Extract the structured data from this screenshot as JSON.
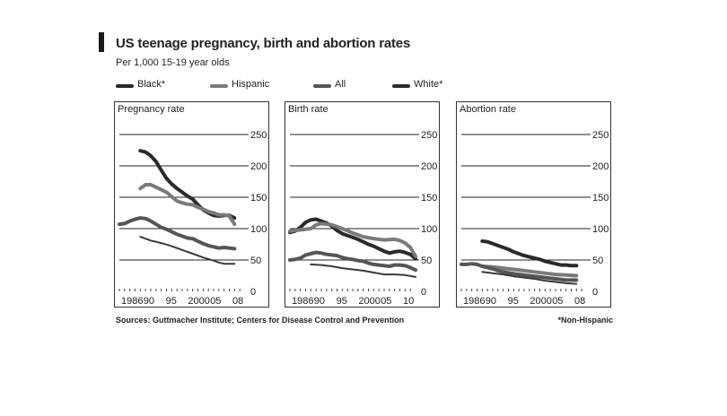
{
  "header": {
    "title": "US teenage pregnancy, birth and abortion rates",
    "subtitle": "Per 1,000 15-19 year olds"
  },
  "legend": [
    {
      "label": "Black*",
      "color": "#2a2a2a"
    },
    {
      "label": "Hispanic",
      "color": "#7a7a7a"
    },
    {
      "label": "All",
      "color": "#555555"
    },
    {
      "label": "White*",
      "color": "#2a2a2a"
    }
  ],
  "footer": {
    "source": "Sources: Guttmacher Institute; Centers for Disease Control and Prevention",
    "note": "*Non-Hispanic"
  },
  "chart_data": [
    {
      "type": "line",
      "title": "Pregnancy rate",
      "ylim": [
        0,
        250
      ],
      "yticks": [
        0,
        50,
        100,
        150,
        200,
        250
      ],
      "xlim": [
        1986,
        2010
      ],
      "xtick_labels": [
        "1986",
        "90",
        "95",
        "2000",
        "05",
        "08"
      ],
      "series": [
        {
          "name": "Black*",
          "color": "#2a2a2a",
          "width": 4,
          "x": [
            1990,
            1991,
            1992,
            1993,
            1994,
            1995,
            1996,
            1997,
            1998,
            1999,
            2000,
            2001,
            2002,
            2003,
            2004,
            2005,
            2006,
            2007,
            2008
          ],
          "values": [
            224,
            222,
            216,
            207,
            193,
            180,
            171,
            164,
            158,
            152,
            147,
            138,
            130,
            125,
            121,
            120,
            121,
            121,
            117
          ]
        },
        {
          "name": "Hispanic",
          "color": "#7a7a7a",
          "width": 4,
          "x": [
            1990,
            1991,
            1992,
            1993,
            1994,
            1995,
            1996,
            1997,
            1998,
            1999,
            2000,
            2001,
            2002,
            2003,
            2004,
            2005,
            2006,
            2007,
            2008
          ],
          "values": [
            164,
            170,
            170,
            166,
            162,
            158,
            151,
            144,
            141,
            139,
            138,
            134,
            131,
            127,
            125,
            122,
            122,
            120,
            107
          ]
        },
        {
          "name": "All",
          "color": "#555555",
          "width": 4,
          "x": [
            1986,
            1987,
            1988,
            1989,
            1990,
            1991,
            1992,
            1993,
            1994,
            1995,
            1996,
            1997,
            1998,
            1999,
            2000,
            2001,
            2002,
            2003,
            2004,
            2005,
            2006,
            2007,
            2008
          ],
          "values": [
            107,
            108,
            112,
            115,
            117,
            116,
            112,
            107,
            102,
            99,
            95,
            91,
            88,
            85,
            84,
            80,
            76,
            73,
            71,
            69,
            70,
            69,
            68
          ]
        },
        {
          "name": "White*",
          "color": "#3a3a3a",
          "width": 2,
          "x": [
            1990,
            1992,
            1994,
            1996,
            1998,
            2000,
            2002,
            2004,
            2005,
            2006,
            2007,
            2008
          ],
          "values": [
            87,
            81,
            77,
            72,
            66,
            60,
            54,
            49,
            46,
            44,
            44,
            44
          ]
        }
      ]
    },
    {
      "type": "line",
      "title": "Birth rate",
      "ylim": [
        0,
        250
      ],
      "yticks": [
        0,
        50,
        100,
        150,
        200,
        250
      ],
      "xlim": [
        1986,
        2010
      ],
      "xtick_labels": [
        "1986",
        "90",
        "95",
        "2000",
        "05",
        "10"
      ],
      "series": [
        {
          "name": "Black*",
          "color": "#2a2a2a",
          "width": 4,
          "x": [
            1986,
            1987,
            1988,
            1989,
            1990,
            1991,
            1992,
            1993,
            1994,
            1995,
            1996,
            1997,
            1998,
            1999,
            2000,
            2001,
            2002,
            2003,
            2004,
            2005,
            2006,
            2007,
            2008,
            2009,
            2010
          ],
          "values": [
            94,
            96,
            102,
            110,
            114,
            115,
            112,
            109,
            104,
            97,
            92,
            89,
            86,
            83,
            79,
            75,
            72,
            68,
            64,
            61,
            63,
            64,
            62,
            59,
            52
          ]
        },
        {
          "name": "Hispanic",
          "color": "#7a7a7a",
          "width": 4,
          "x": [
            1986,
            1988,
            1990,
            1991,
            1992,
            1994,
            1996,
            1998,
            2000,
            2002,
            2004,
            2006,
            2007,
            2008,
            2009,
            2010
          ],
          "values": [
            96,
            98,
            100,
            106,
            108,
            106,
            100,
            93,
            87,
            84,
            82,
            83,
            81,
            77,
            70,
            56
          ]
        },
        {
          "name": "All",
          "color": "#555555",
          "width": 4,
          "x": [
            1986,
            1987,
            1988,
            1989,
            1990,
            1991,
            1992,
            1993,
            1994,
            1995,
            1996,
            1997,
            1998,
            1999,
            2000,
            2001,
            2002,
            2003,
            2004,
            2005,
            2006,
            2007,
            2008,
            2009,
            2010
          ],
          "values": [
            50,
            51,
            53,
            58,
            60,
            62,
            61,
            59,
            58,
            57,
            54,
            52,
            51,
            49,
            48,
            45,
            43,
            42,
            41,
            40,
            42,
            42,
            41,
            38,
            34
          ]
        },
        {
          "name": "White*",
          "color": "#3a3a3a",
          "width": 2,
          "x": [
            1990,
            1992,
            1994,
            1996,
            1998,
            2000,
            2002,
            2004,
            2006,
            2008,
            2010
          ],
          "values": [
            43,
            42,
            40,
            37,
            35,
            33,
            30,
            27,
            27,
            26,
            23
          ]
        }
      ]
    },
    {
      "type": "line",
      "title": "Abortion rate",
      "ylim": [
        0,
        250
      ],
      "yticks": [
        0,
        50,
        100,
        150,
        200,
        250
      ],
      "xlim": [
        1986,
        2010
      ],
      "xtick_labels": [
        "1986",
        "90",
        "95",
        "2000",
        "05",
        "08"
      ],
      "series": [
        {
          "name": "Black*",
          "color": "#2a2a2a",
          "width": 4,
          "x": [
            1990,
            1991,
            1992,
            1993,
            1994,
            1995,
            1996,
            1997,
            1998,
            1999,
            2000,
            2001,
            2002,
            2003,
            2004,
            2005,
            2006,
            2007,
            2008
          ],
          "values": [
            80,
            79,
            76,
            73,
            70,
            67,
            63,
            60,
            57,
            55,
            53,
            51,
            48,
            46,
            44,
            42,
            42,
            41,
            41
          ]
        },
        {
          "name": "Hispanic",
          "color": "#7a7a7a",
          "width": 4,
          "x": [
            1990,
            1992,
            1994,
            1996,
            1998,
            2000,
            2002,
            2004,
            2006,
            2008
          ],
          "values": [
            40,
            39,
            37,
            35,
            33,
            31,
            29,
            27,
            26,
            25
          ]
        },
        {
          "name": "All",
          "color": "#555555",
          "width": 4,
          "x": [
            1986,
            1987,
            1988,
            1989,
            1990,
            1991,
            1992,
            1993,
            1994,
            1996,
            1998,
            2000,
            2002,
            2004,
            2006,
            2008
          ],
          "values": [
            43,
            43,
            44,
            43,
            40,
            38,
            36,
            33,
            31,
            28,
            26,
            24,
            22,
            20,
            18,
            18
          ]
        },
        {
          "name": "White*",
          "color": "#3a3a3a",
          "width": 2,
          "x": [
            1990,
            1992,
            1994,
            1996,
            1998,
            2000,
            2002,
            2004,
            2006,
            2008
          ],
          "values": [
            31,
            29,
            27,
            24,
            22,
            20,
            17,
            15,
            13,
            12
          ]
        }
      ]
    }
  ]
}
